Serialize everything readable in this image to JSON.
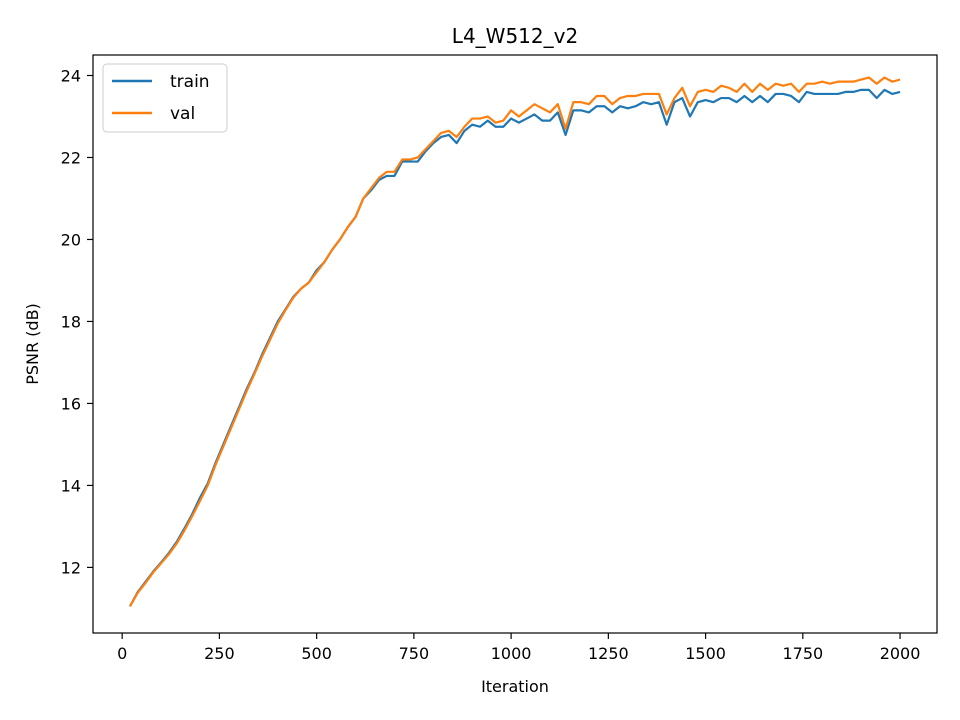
{
  "chart_data": {
    "type": "line",
    "title": "L4_W512_v2",
    "xlabel": "Iteration",
    "ylabel": "PSNR (dB)",
    "xlim": [
      -75,
      2095
    ],
    "ylim": [
      10.4,
      24.5
    ],
    "xticks": [
      0,
      250,
      500,
      750,
      1000,
      1250,
      1500,
      1750,
      2000
    ],
    "yticks": [
      12,
      14,
      16,
      18,
      20,
      22,
      24
    ],
    "grid": false,
    "legend": "top-left",
    "x": [
      20,
      40,
      60,
      80,
      100,
      120,
      140,
      160,
      180,
      200,
      220,
      240,
      260,
      280,
      300,
      320,
      340,
      360,
      380,
      400,
      420,
      440,
      460,
      480,
      500,
      520,
      540,
      560,
      580,
      600,
      620,
      640,
      660,
      680,
      700,
      720,
      740,
      760,
      780,
      800,
      820,
      840,
      860,
      880,
      900,
      920,
      940,
      960,
      980,
      1000,
      1020,
      1040,
      1060,
      1080,
      1100,
      1120,
      1140,
      1160,
      1180,
      1200,
      1220,
      1240,
      1260,
      1280,
      1300,
      1320,
      1340,
      1360,
      1380,
      1400,
      1420,
      1440,
      1460,
      1480,
      1500,
      1520,
      1540,
      1560,
      1580,
      1600,
      1620,
      1640,
      1660,
      1680,
      1700,
      1720,
      1740,
      1760,
      1780,
      1800,
      1820,
      1840,
      1860,
      1880,
      1900,
      1920,
      1940,
      1960,
      1980,
      2000
    ],
    "series": [
      {
        "name": "train",
        "color": "#1f77b4",
        "values": [
          11.05,
          11.4,
          11.65,
          11.9,
          12.12,
          12.35,
          12.62,
          12.95,
          13.3,
          13.7,
          14.05,
          14.55,
          15.0,
          15.45,
          15.9,
          16.35,
          16.75,
          17.2,
          17.6,
          18.0,
          18.3,
          18.6,
          18.8,
          18.95,
          19.25,
          19.45,
          19.75,
          20.0,
          20.3,
          20.55,
          21.0,
          21.2,
          21.45,
          21.55,
          21.55,
          21.9,
          21.9,
          21.9,
          22.15,
          22.35,
          22.5,
          22.55,
          22.35,
          22.65,
          22.8,
          22.75,
          22.9,
          22.75,
          22.75,
          22.95,
          22.85,
          22.95,
          23.05,
          22.9,
          22.9,
          23.1,
          22.55,
          23.15,
          23.15,
          23.1,
          23.25,
          23.25,
          23.1,
          23.25,
          23.2,
          23.25,
          23.35,
          23.3,
          23.35,
          22.8,
          23.35,
          23.45,
          23.0,
          23.35,
          23.4,
          23.35,
          23.45,
          23.45,
          23.35,
          23.5,
          23.35,
          23.5,
          23.35,
          23.55,
          23.55,
          23.5,
          23.35,
          23.6,
          23.55,
          23.55,
          23.55,
          23.55,
          23.6,
          23.6,
          23.65,
          23.65,
          23.45,
          23.65,
          23.55,
          23.6
        ]
      },
      {
        "name": "val",
        "color": "#ff7f0e",
        "values": [
          11.05,
          11.38,
          11.62,
          11.88,
          12.1,
          12.32,
          12.58,
          12.9,
          13.25,
          13.62,
          14.0,
          14.5,
          14.95,
          15.4,
          15.85,
          16.3,
          16.72,
          17.15,
          17.55,
          17.95,
          18.28,
          18.58,
          18.8,
          18.95,
          19.2,
          19.45,
          19.75,
          20.0,
          20.3,
          20.55,
          21.0,
          21.25,
          21.5,
          21.65,
          21.65,
          21.95,
          21.95,
          22.0,
          22.2,
          22.4,
          22.6,
          22.65,
          22.5,
          22.75,
          22.95,
          22.95,
          23.0,
          22.85,
          22.9,
          23.15,
          23.0,
          23.15,
          23.3,
          23.2,
          23.1,
          23.3,
          22.7,
          23.35,
          23.35,
          23.3,
          23.5,
          23.5,
          23.3,
          23.45,
          23.5,
          23.5,
          23.55,
          23.55,
          23.55,
          23.05,
          23.45,
          23.7,
          23.25,
          23.6,
          23.65,
          23.6,
          23.75,
          23.7,
          23.6,
          23.8,
          23.6,
          23.8,
          23.65,
          23.8,
          23.75,
          23.8,
          23.6,
          23.8,
          23.8,
          23.85,
          23.8,
          23.85,
          23.85,
          23.85,
          23.9,
          23.95,
          23.8,
          23.95,
          23.85,
          23.9
        ]
      }
    ]
  }
}
